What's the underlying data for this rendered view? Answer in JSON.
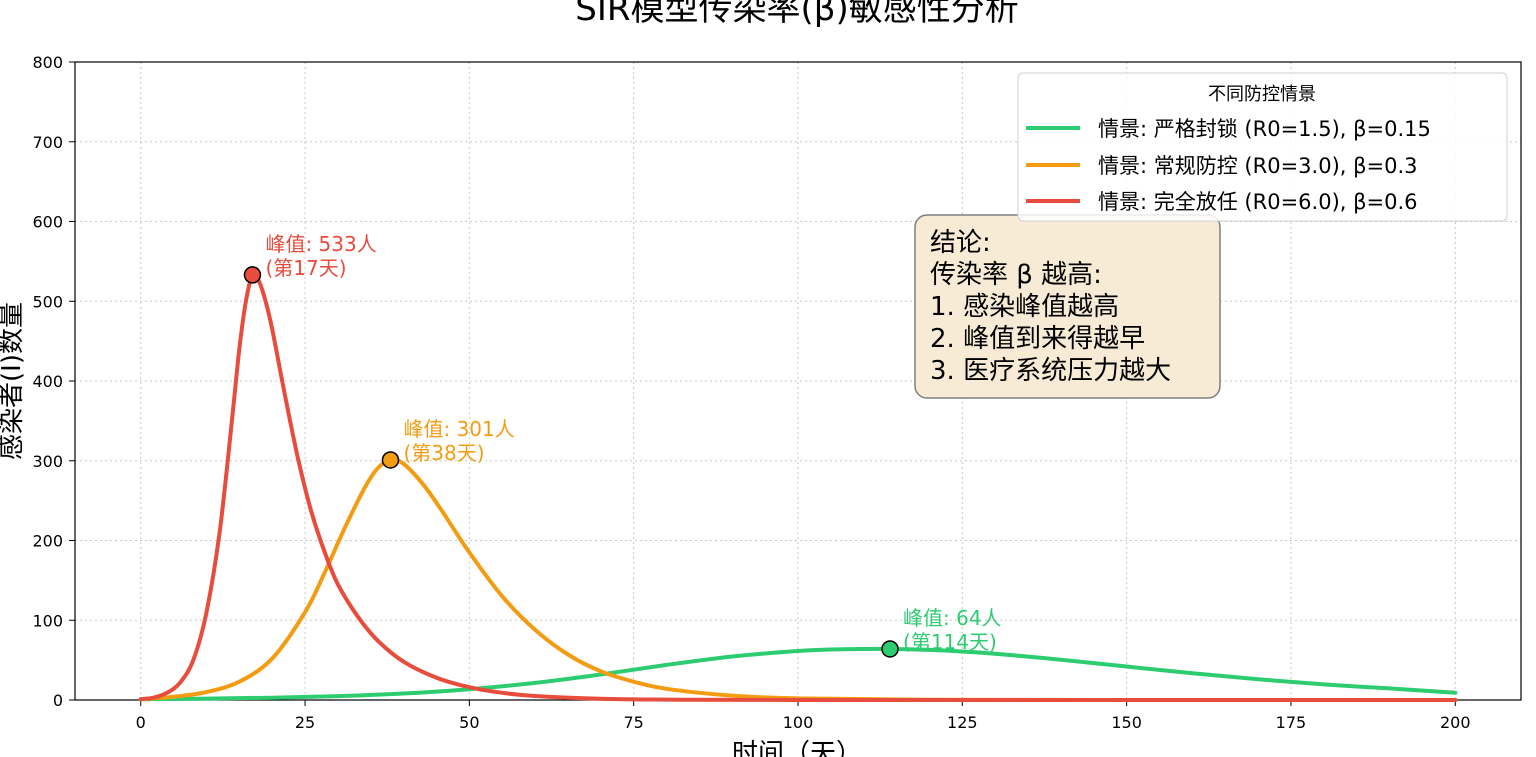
{
  "chart_data": {
    "type": "line",
    "title": "SIR模型传染率(β)敏感性分析",
    "xlabel": "时间（天）",
    "ylabel": "感染者(I)数量",
    "xlim": [
      -10,
      210
    ],
    "ylim": [
      0,
      800
    ],
    "xticks": [
      0,
      25,
      50,
      75,
      100,
      125,
      150,
      175,
      200
    ],
    "yticks": [
      0,
      100,
      200,
      300,
      400,
      500,
      600,
      700,
      800
    ],
    "grid": true,
    "legend_title": "不同防控情景",
    "legend_position": "top-right",
    "series": [
      {
        "name": "情景: 严格封锁 (R0=1.5), β=0.15",
        "color": "#2ecc71",
        "x": [
          0,
          10,
          20,
          30,
          40,
          50,
          60,
          70,
          80,
          90,
          100,
          105,
          110,
          114,
          120,
          125,
          130,
          140,
          150,
          160,
          170,
          180,
          190,
          200
        ],
        "y": [
          1,
          1.7,
          2.9,
          4.9,
          8.2,
          13.5,
          21.5,
          32,
          44,
          54.5,
          61.5,
          63.3,
          64,
          64,
          62.8,
          60.8,
          58,
          50.5,
          42,
          33.5,
          26,
          19.5,
          14.5,
          9
        ],
        "peak": {
          "x": 114,
          "y": 64
        },
        "peak_label_line1": "峰值: 64人",
        "peak_label_line2": "(第114天)"
      },
      {
        "name": "情景: 常规防控 (R0=3.0), β=0.3",
        "color": "#f39c12",
        "x": [
          0,
          5,
          10,
          15,
          20,
          25,
          28,
          31,
          34,
          36,
          38,
          40,
          43,
          46,
          50,
          55,
          60,
          65,
          70,
          75,
          80,
          90,
          100,
          120,
          150,
          200
        ],
        "y": [
          1,
          4,
          10,
          23,
          52,
          110,
          160,
          215,
          265,
          290,
          301,
          296,
          270,
          235,
          185,
          130,
          88,
          57,
          36,
          23,
          14,
          5.5,
          2,
          0.3,
          0,
          0
        ],
        "peak": {
          "x": 38,
          "y": 301
        },
        "peak_label_line1": "峰值: 301人",
        "peak_label_line2": "(第38天)"
      },
      {
        "name": "情景: 完全放任 (R0=6.0), β=0.6",
        "color": "#e74c3c",
        "x": [
          0,
          2,
          4,
          6,
          8,
          10,
          12,
          14,
          15,
          16,
          17,
          18,
          19,
          20,
          22,
          24,
          26,
          28,
          30,
          33,
          36,
          40,
          45,
          50,
          55,
          60,
          70,
          80,
          100,
          150,
          200
        ],
        "y": [
          1,
          3,
          9,
          22,
          50,
          110,
          210,
          360,
          440,
          500,
          533,
          525,
          500,
          465,
          380,
          300,
          235,
          185,
          145,
          105,
          75,
          48,
          28,
          16,
          9,
          5,
          1.5,
          0.5,
          0,
          0,
          0
        ],
        "peak": {
          "x": 17,
          "y": 533
        },
        "peak_label_line1": "峰值: 533人",
        "peak_label_line2": "(第17天)"
      }
    ],
    "annotation_box": {
      "lines": [
        "结论:",
        "传染率 β 越高:",
        "1. 感染峰值越高",
        "2. 峰值到来得越早",
        "3. 医疗系统压力越大"
      ],
      "background": "#f7ebd5"
    }
  }
}
